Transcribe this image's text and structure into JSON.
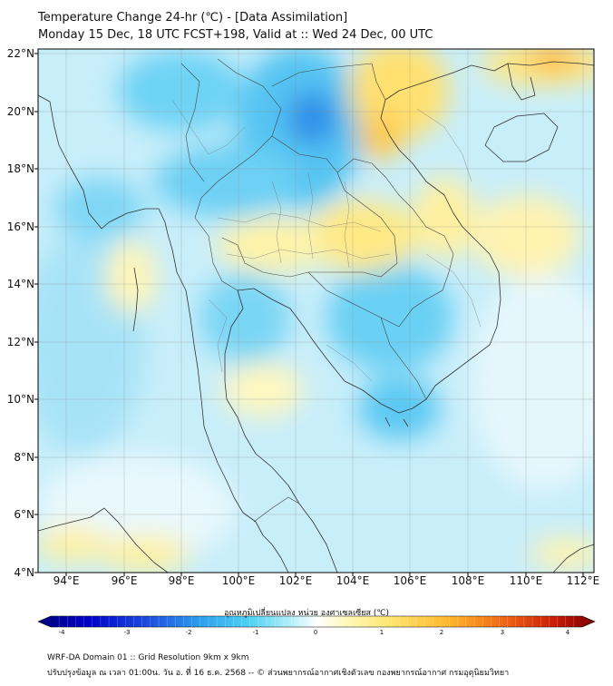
{
  "header": {
    "title_line1": "Temperature Change 24-hr (℃) - [Data Assimilation]",
    "title_line2": "Monday 15 Dec, 18 UTC FCST+198, Valid at :: Wed 24 Dec, 00 UTC"
  },
  "map": {
    "lat_labels": [
      "22°N",
      "20°N",
      "18°N",
      "16°N",
      "14°N",
      "12°N",
      "10°N",
      "8°N",
      "6°N",
      "4°N"
    ],
    "lon_labels": [
      "94°E",
      "96°E",
      "98°E",
      "100°E",
      "102°E",
      "104°E",
      "106°E",
      "108°E",
      "110°E",
      "112°E"
    ],
    "extent": {
      "lon_min": 93,
      "lon_max": 112.3,
      "lat_min": 4,
      "lat_max": 22.2
    }
  },
  "colorbar": {
    "label": "อุณหภูมิเปลี่ยนแปลง หน่วย องศาเซลเซียส (℃)",
    "ticks": [
      "-4",
      "-3",
      "-2",
      "-1",
      "0",
      "1",
      "2",
      "3",
      "4"
    ],
    "min": -4,
    "max": 4,
    "colors": [
      "#00007a",
      "#0000c8",
      "#1d4fe0",
      "#2ea6ee",
      "#4fd2f4",
      "#bdf1fb",
      "#ffffff",
      "#fff8b0",
      "#ffe36a",
      "#ffb52a",
      "#f06414",
      "#c81a05",
      "#7a0000"
    ]
  },
  "footer": {
    "line1": "WRF-DA Domain 01 :: Grid Resolution 9km x 9km",
    "line2": "ปรับปรุงข้อมูล ณ เวลา 01:00น. วัน อ. ที่ 16 ธ.ค. 2568 -- © ส่วนพยากรณ์อากาศเชิงตัวเลข กองพยากรณ์อากาศ กรมอุตุนิยมวิทยา"
  }
}
